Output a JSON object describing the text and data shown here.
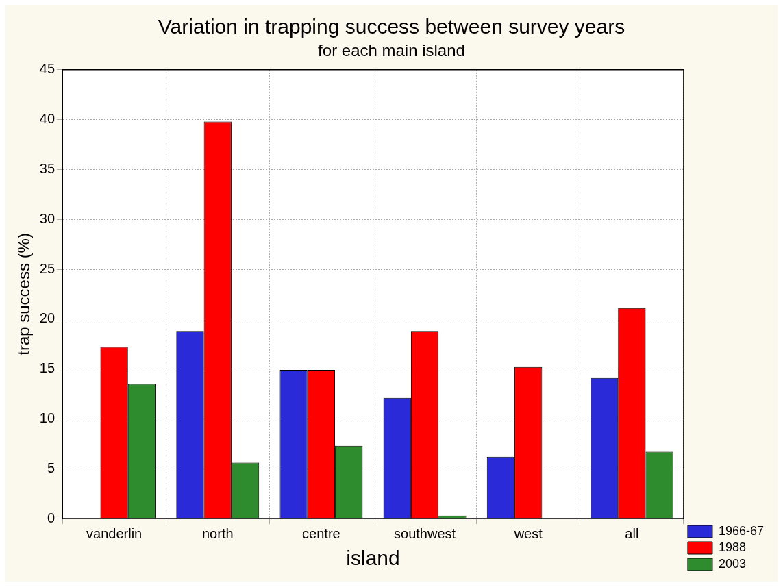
{
  "chart_data": {
    "type": "bar",
    "title": "Variation in trapping success between survey years",
    "subtitle": "for each main island",
    "xlabel": "island",
    "ylabel": "trap success (%)",
    "categories": [
      "vanderlin",
      "north",
      "centre",
      "southwest",
      "west",
      "all"
    ],
    "series": [
      {
        "name": "1966-67",
        "color": "#2a2ad8",
        "values": [
          null,
          18.8,
          14.9,
          12.1,
          6.2,
          14.1
        ]
      },
      {
        "name": "1988",
        "color": "#ff0000",
        "values": [
          17.2,
          39.8,
          14.9,
          18.8,
          15.2,
          21.1
        ]
      },
      {
        "name": "2003",
        "color": "#2e8b2e",
        "values": [
          13.5,
          5.6,
          7.3,
          0.3,
          null,
          6.7
        ]
      }
    ],
    "ylim": [
      0,
      45
    ],
    "yticks": [
      0,
      5,
      10,
      15,
      20,
      25,
      30,
      35,
      40,
      45
    ],
    "grid": true,
    "legend": "bottom right"
  }
}
